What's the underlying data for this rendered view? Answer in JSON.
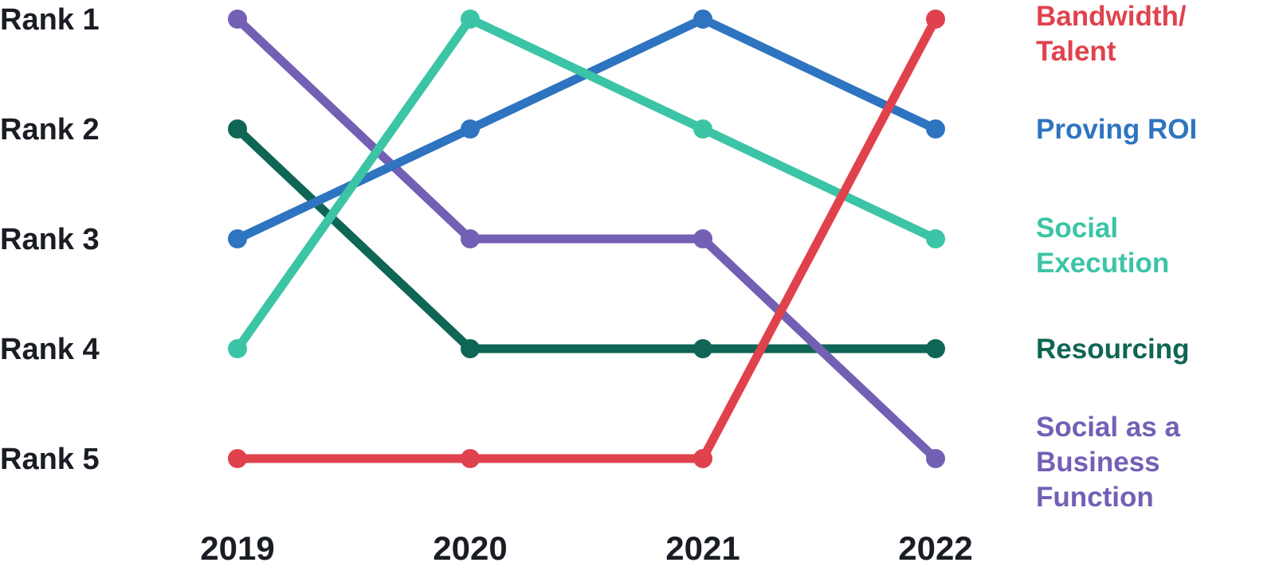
{
  "chart_data": {
    "type": "line",
    "title": "",
    "xlabel": "",
    "ylabel": "",
    "x": [
      "2019",
      "2020",
      "2021",
      "2022"
    ],
    "y_categories": [
      "Rank 1",
      "Rank 2",
      "Rank 3",
      "Rank 4",
      "Rank 5"
    ],
    "y_inverted": true,
    "ylim": [
      1,
      5
    ],
    "grid": false,
    "legend_placement": "right",
    "series": [
      {
        "name": "Bandwidth/ Talent",
        "label_lines": [
          "Bandwidth/",
          "Talent"
        ],
        "color": "#e0424d",
        "values": [
          5,
          5,
          5,
          1
        ]
      },
      {
        "name": "Proving ROI",
        "label_lines": [
          "Proving ROI"
        ],
        "color": "#2e74c0",
        "values": [
          3,
          2,
          1,
          2
        ]
      },
      {
        "name": "Social Execution",
        "label_lines": [
          "Social",
          "Execution"
        ],
        "color": "#3cc4a6",
        "values": [
          4,
          1,
          2,
          3
        ]
      },
      {
        "name": "Resourcing",
        "label_lines": [
          "Resourcing"
        ],
        "color": "#0f6655",
        "values": [
          2,
          4,
          4,
          4
        ]
      },
      {
        "name": "Social as a Business Function",
        "label_lines": [
          "Social as a",
          "Business",
          "Function"
        ],
        "color": "#7360b5",
        "values": [
          1,
          3,
          3,
          5
        ]
      }
    ]
  }
}
